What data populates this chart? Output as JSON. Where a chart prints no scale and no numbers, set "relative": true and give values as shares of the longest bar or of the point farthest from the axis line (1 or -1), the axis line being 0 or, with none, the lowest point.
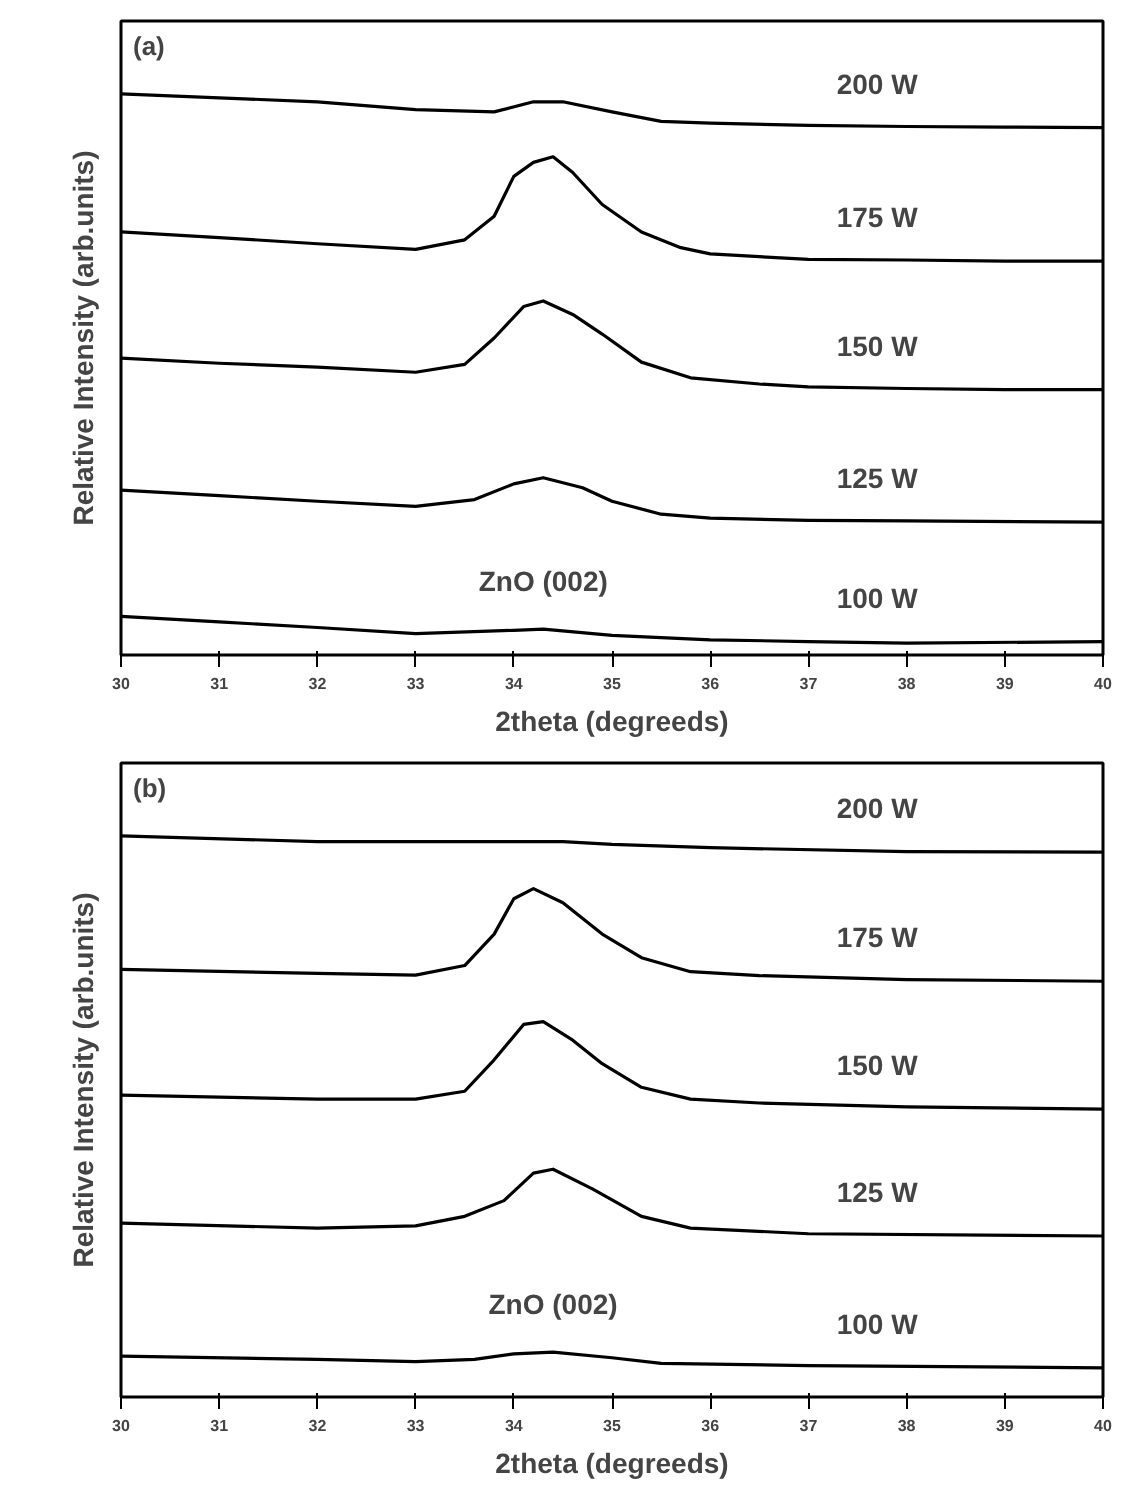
{
  "chart_data": [
    {
      "type": "line",
      "title": "(a)",
      "xlabel": "2theta (degreeds)",
      "ylabel": "Relative Intensity (arb.units)",
      "relative": true,
      "xlim": [
        30,
        40
      ],
      "xticks": [
        30,
        31,
        32,
        33,
        34,
        35,
        36,
        37,
        38,
        39,
        40
      ],
      "grid": false,
      "annotations": [
        {
          "text": "ZnO (002)",
          "x": 34.3,
          "y": 0.046
        }
      ],
      "series": [
        {
          "name": "100 W",
          "color": "#000000",
          "x": [
            30,
            31,
            32,
            33,
            34,
            34.3,
            35,
            36,
            37,
            38,
            40
          ],
          "values": [
            0.069,
            0.059,
            0.049,
            0.038,
            0.044,
            0.046,
            0.035,
            0.027,
            0.024,
            0.021,
            0.024
          ]
        },
        {
          "name": "125 W",
          "color": "#000000",
          "x": [
            30,
            31,
            32,
            33,
            33.6,
            34,
            34.3,
            34.7,
            35,
            35.5,
            36,
            37,
            38,
            40
          ],
          "values": [
            0.294,
            0.284,
            0.274,
            0.265,
            0.277,
            0.305,
            0.316,
            0.298,
            0.274,
            0.251,
            0.244,
            0.24,
            0.239,
            0.237
          ]
        },
        {
          "name": "150 W",
          "color": "#000000",
          "x": [
            30,
            31,
            32,
            33,
            33.5,
            33.8,
            34.1,
            34.3,
            34.6,
            34.9,
            35.3,
            35.8,
            36.5,
            37,
            38,
            39,
            40
          ],
          "values": [
            0.529,
            0.52,
            0.513,
            0.504,
            0.518,
            0.565,
            0.621,
            0.631,
            0.607,
            0.572,
            0.522,
            0.494,
            0.483,
            0.478,
            0.475,
            0.473,
            0.473
          ]
        },
        {
          "name": "175 W",
          "color": "#000000",
          "x": [
            30,
            31,
            32,
            33,
            33.5,
            33.8,
            34,
            34.2,
            34.4,
            34.6,
            34.9,
            35.3,
            35.7,
            36,
            37,
            38,
            39,
            40
          ],
          "values": [
            0.754,
            0.744,
            0.733,
            0.723,
            0.74,
            0.782,
            0.853,
            0.878,
            0.888,
            0.86,
            0.803,
            0.754,
            0.726,
            0.715,
            0.705,
            0.704,
            0.702,
            0.702
          ]
        },
        {
          "name": "200 W",
          "color": "#000000",
          "x": [
            30,
            31,
            32,
            33,
            33.8,
            34.2,
            34.5,
            35,
            35.5,
            36,
            37,
            38,
            39,
            40
          ],
          "values": [
            1.0,
            0.993,
            0.986,
            0.972,
            0.968,
            0.986,
            0.986,
            0.968,
            0.951,
            0.948,
            0.944,
            0.942,
            0.941,
            0.94
          ]
        }
      ]
    },
    {
      "type": "line",
      "title": "(b)",
      "xlabel": "2theta (degreeds)",
      "ylabel": "Relative Intensity (arb.units)",
      "relative": true,
      "xlim": [
        30,
        40
      ],
      "xticks": [
        30,
        31,
        32,
        33,
        34,
        35,
        36,
        37,
        38,
        39,
        40
      ],
      "grid": false,
      "annotations": [
        {
          "text": "ZnO (002)",
          "x": 34.4,
          "y": 0.08
        }
      ],
      "series": [
        {
          "name": "100 W",
          "color": "#000000",
          "x": [
            30,
            32,
            33,
            33.6,
            34,
            34.4,
            35,
            35.5,
            37,
            40
          ],
          "values": [
            0.073,
            0.067,
            0.063,
            0.067,
            0.077,
            0.08,
            0.07,
            0.06,
            0.056,
            0.052
          ]
        },
        {
          "name": "125 W",
          "color": "#000000",
          "x": [
            30,
            32,
            33,
            33.5,
            33.9,
            34.2,
            34.4,
            34.8,
            35.3,
            35.8,
            37,
            40
          ],
          "values": [
            0.31,
            0.301,
            0.305,
            0.322,
            0.35,
            0.399,
            0.406,
            0.371,
            0.322,
            0.301,
            0.291,
            0.287
          ]
        },
        {
          "name": "150 W",
          "color": "#000000",
          "x": [
            30,
            32,
            33,
            33.5,
            33.8,
            34.1,
            34.3,
            34.6,
            34.9,
            35.3,
            35.8,
            36.5,
            38,
            40
          ],
          "values": [
            0.538,
            0.531,
            0.531,
            0.545,
            0.601,
            0.664,
            0.669,
            0.636,
            0.594,
            0.552,
            0.531,
            0.524,
            0.517,
            0.513
          ]
        },
        {
          "name": "175 W",
          "color": "#000000",
          "x": [
            30,
            32,
            33,
            33.5,
            33.8,
            34,
            34.2,
            34.5,
            34.9,
            35.3,
            35.8,
            36.5,
            38,
            40
          ],
          "values": [
            0.762,
            0.755,
            0.752,
            0.769,
            0.825,
            0.888,
            0.906,
            0.881,
            0.825,
            0.783,
            0.758,
            0.751,
            0.744,
            0.741
          ]
        },
        {
          "name": "200 W",
          "color": "#000000",
          "x": [
            30,
            32,
            34,
            34.5,
            35,
            36,
            38,
            40
          ],
          "values": [
            1.0,
            0.99,
            0.99,
            0.99,
            0.985,
            0.979,
            0.972,
            0.971
          ]
        }
      ]
    }
  ]
}
